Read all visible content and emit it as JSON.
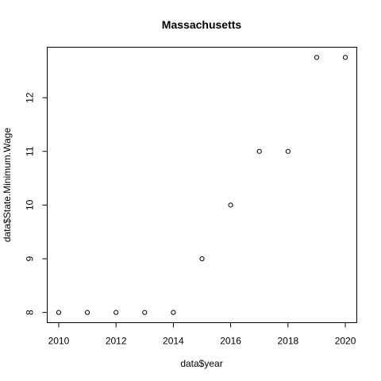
{
  "chart_data": {
    "type": "scatter",
    "title": "Massachusetts",
    "xlabel": "data$year",
    "ylabel": "data$State.Minimum.Wage",
    "xlim": [
      2009.6,
      2020.4
    ],
    "ylim": [
      7.81,
      12.94
    ],
    "x_ticks": [
      2010,
      2012,
      2014,
      2016,
      2018,
      2020
    ],
    "y_ticks": [
      8,
      9,
      10,
      11,
      12
    ],
    "x": [
      2010,
      2011,
      2012,
      2013,
      2014,
      2015,
      2016,
      2017,
      2018,
      2019,
      2020
    ],
    "y": [
      8,
      8,
      8,
      8,
      8,
      9,
      10,
      11,
      11,
      12.75,
      12.75
    ],
    "grid": false,
    "marker": "open-circle",
    "colors": {
      "points": "#000000",
      "axes": "#000000",
      "background": "#ffffff"
    }
  }
}
